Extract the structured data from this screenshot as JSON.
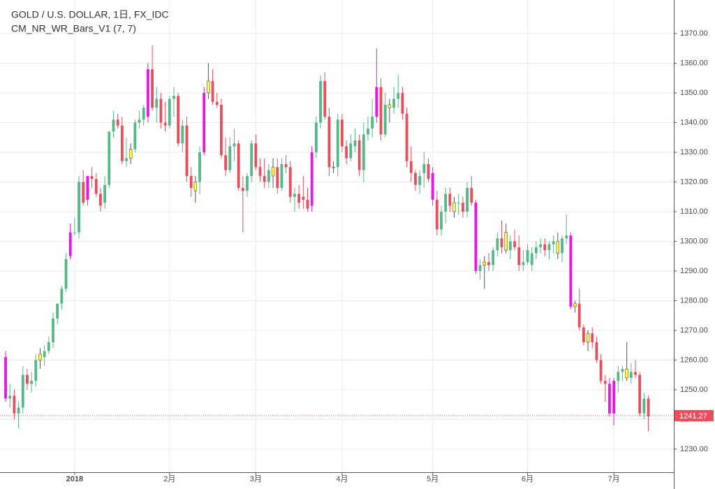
{
  "chart_data": {
    "type": "candlestick",
    "title": "GOLD / U.S. DOLLAR, 1日, FX_IDC",
    "indicator": "CM_NR_WR_Bars_V1 (7, 7)",
    "xlim": [
      -1.3,
      154.9
    ],
    "xticks": [
      {
        "value": 16,
        "label": "2018"
      },
      {
        "value": 38,
        "label": "2月"
      },
      {
        "value": 58,
        "label": "3月"
      },
      {
        "value": 78,
        "label": "4月"
      },
      {
        "value": 99,
        "label": "5月"
      },
      {
        "value": 121,
        "label": "6月"
      },
      {
        "value": 141,
        "label": "7月"
      }
    ],
    "ylim": [
      1222.2,
      1381.3
    ],
    "yticks": [
      {
        "value": 1230,
        "label": "1230.00"
      },
      {
        "value": 1240,
        "label": "1240.00"
      },
      {
        "value": 1250,
        "label": "1250.00"
      },
      {
        "value": 1260,
        "label": "1260.00"
      },
      {
        "value": 1270,
        "label": "1270.00"
      },
      {
        "value": 1280,
        "label": "1280.00"
      },
      {
        "value": 1290,
        "label": "1290.00"
      },
      {
        "value": 1300,
        "label": "1300.00"
      },
      {
        "value": 1310,
        "label": "1310.00"
      },
      {
        "value": 1320,
        "label": "1320.00"
      },
      {
        "value": 1330,
        "label": "1330.00"
      },
      {
        "value": 1340,
        "label": "1340.00"
      },
      {
        "value": 1350,
        "label": "1350.00"
      },
      {
        "value": 1360,
        "label": "1360.00"
      },
      {
        "value": 1370,
        "label": "1370.00"
      }
    ],
    "grid": true,
    "last_price": 1241.27,
    "last_price_color": "#eb4d5c",
    "up_color": "#53b987",
    "down_color": "#eb4d5c",
    "wide_color": "#e915e6",
    "narrow_color": "#ffff33",
    "wide_bars": [
      0,
      15,
      19,
      33,
      46,
      71,
      86,
      99,
      109,
      131,
      140,
      141
    ],
    "narrow_bars": [
      8,
      29,
      44,
      47,
      62,
      76,
      89,
      104,
      111,
      116,
      128,
      132,
      135,
      144
    ],
    "ohlc": [
      [
        1261,
        1263,
        1246,
        1247
      ],
      [
        1247,
        1252,
        1244,
        1248
      ],
      [
        1248,
        1250,
        1240,
        1242
      ],
      [
        1242,
        1246,
        1237,
        1244
      ],
      [
        1244,
        1258,
        1242,
        1255
      ],
      [
        1255,
        1257,
        1250,
        1252
      ],
      [
        1252,
        1256,
        1249,
        1253
      ],
      [
        1253,
        1262,
        1251,
        1260
      ],
      [
        1260,
        1264,
        1257,
        1262
      ],
      [
        1261,
        1265,
        1258,
        1263
      ],
      [
        1263,
        1268,
        1262,
        1266
      ],
      [
        1266,
        1276,
        1264,
        1274
      ],
      [
        1274,
        1279,
        1272,
        1279
      ],
      [
        1279,
        1285,
        1277,
        1284
      ],
      [
        1284,
        1296,
        1283,
        1294
      ],
      [
        1295,
        1306,
        1294,
        1303
      ],
      [
        1303,
        1308,
        1302,
        1303
      ],
      [
        1303,
        1322,
        1301,
        1320
      ],
      [
        1320,
        1324,
        1312,
        1313
      ],
      [
        1314,
        1322,
        1312,
        1322
      ],
      [
        1322,
        1325,
        1318,
        1321
      ],
      [
        1321,
        1323,
        1315,
        1316
      ],
      [
        1316,
        1318,
        1310,
        1312
      ],
      [
        1313,
        1322,
        1311,
        1319
      ],
      [
        1319,
        1337,
        1318,
        1337
      ],
      [
        1337,
        1344,
        1335,
        1341
      ],
      [
        1341,
        1343,
        1338,
        1339
      ],
      [
        1339,
        1342,
        1326,
        1327
      ],
      [
        1327,
        1335,
        1325,
        1328
      ],
      [
        1328,
        1333,
        1326,
        1331
      ],
      [
        1331,
        1341,
        1330,
        1340
      ],
      [
        1340,
        1344,
        1338,
        1341
      ],
      [
        1341,
        1346,
        1339,
        1345
      ],
      [
        1342,
        1360,
        1340,
        1358
      ],
      [
        1358,
        1366,
        1344,
        1345
      ],
      [
        1345,
        1352,
        1340,
        1348
      ],
      [
        1348,
        1350,
        1338,
        1340
      ],
      [
        1340,
        1347,
        1337,
        1339
      ],
      [
        1339,
        1349,
        1338,
        1348
      ],
      [
        1348,
        1352,
        1342,
        1349
      ],
      [
        1349,
        1350,
        1332,
        1333
      ],
      [
        1333,
        1341,
        1330,
        1339
      ],
      [
        1339,
        1342,
        1320,
        1322
      ],
      [
        1322,
        1325,
        1315,
        1318
      ],
      [
        1317,
        1322,
        1313,
        1320
      ],
      [
        1320,
        1332,
        1316,
        1330
      ],
      [
        1330,
        1352,
        1329,
        1350
      ],
      [
        1350,
        1360,
        1348,
        1354
      ],
      [
        1354,
        1358,
        1346,
        1347
      ],
      [
        1347,
        1350,
        1345,
        1346
      ],
      [
        1346,
        1348,
        1328,
        1329
      ],
      [
        1329,
        1335,
        1322,
        1324
      ],
      [
        1324,
        1335,
        1323,
        1332
      ],
      [
        1332,
        1338,
        1327,
        1333
      ],
      [
        1333,
        1334,
        1317,
        1318
      ],
      [
        1318,
        1322,
        1303,
        1317
      ],
      [
        1317,
        1323,
        1315,
        1322
      ],
      [
        1322,
        1334,
        1320,
        1333
      ],
      [
        1333,
        1336,
        1324,
        1325
      ],
      [
        1325,
        1328,
        1320,
        1322
      ],
      [
        1322,
        1328,
        1318,
        1320
      ],
      [
        1320,
        1326,
        1318,
        1324
      ],
      [
        1322,
        1328,
        1318,
        1325
      ],
      [
        1325,
        1328,
        1316,
        1318
      ],
      [
        1318,
        1328,
        1317,
        1326
      ],
      [
        1326,
        1329,
        1323,
        1325
      ],
      [
        1325,
        1327,
        1313,
        1315
      ],
      [
        1315,
        1318,
        1310,
        1316
      ],
      [
        1316,
        1319,
        1311,
        1313
      ],
      [
        1315,
        1322,
        1311,
        1314
      ],
      [
        1314,
        1318,
        1310,
        1311
      ],
      [
        1312,
        1332,
        1310,
        1330
      ],
      [
        1330,
        1342,
        1328,
        1340
      ],
      [
        1340,
        1356,
        1338,
        1354
      ],
      [
        1354,
        1357,
        1341,
        1342
      ],
      [
        1342,
        1345,
        1322,
        1325
      ],
      [
        1325,
        1327,
        1323,
        1325
      ],
      [
        1325,
        1343,
        1322,
        1341
      ],
      [
        1341,
        1343,
        1330,
        1332
      ],
      [
        1332,
        1334,
        1326,
        1328
      ],
      [
        1328,
        1336,
        1327,
        1333
      ],
      [
        1332,
        1338,
        1330,
        1334
      ],
      [
        1334,
        1336,
        1322,
        1324
      ],
      [
        1324,
        1340,
        1320,
        1336
      ],
      [
        1336,
        1342,
        1334,
        1338
      ],
      [
        1338,
        1348,
        1335,
        1342
      ],
      [
        1342,
        1365,
        1340,
        1352
      ],
      [
        1352,
        1355,
        1334,
        1336
      ],
      [
        1336,
        1350,
        1335,
        1346
      ],
      [
        1346,
        1348,
        1340,
        1345
      ],
      [
        1345,
        1352,
        1343,
        1348
      ],
      [
        1348,
        1356,
        1345,
        1350
      ],
      [
        1350,
        1352,
        1341,
        1343
      ],
      [
        1343,
        1345,
        1325,
        1327
      ],
      [
        1327,
        1332,
        1320,
        1323
      ],
      [
        1323,
        1324,
        1317,
        1319
      ],
      [
        1319,
        1324,
        1316,
        1322
      ],
      [
        1323,
        1330,
        1318,
        1326
      ],
      [
        1326,
        1328,
        1320,
        1321
      ],
      [
        1323,
        1325,
        1312,
        1314
      ],
      [
        1314,
        1317,
        1302,
        1304
      ],
      [
        1304,
        1312,
        1302,
        1310
      ],
      [
        1310,
        1318,
        1306,
        1316
      ],
      [
        1316,
        1318,
        1310,
        1312
      ],
      [
        1310,
        1315,
        1308,
        1313
      ],
      [
        1313,
        1316,
        1309,
        1313
      ],
      [
        1313,
        1315,
        1308,
        1310
      ],
      [
        1310,
        1320,
        1308,
        1318
      ],
      [
        1318,
        1322,
        1312,
        1313
      ],
      [
        1313,
        1314,
        1289,
        1290
      ],
      [
        1290,
        1294,
        1287,
        1292
      ],
      [
        1292,
        1295,
        1284,
        1293
      ],
      [
        1293,
        1296,
        1290,
        1292
      ],
      [
        1292,
        1298,
        1290,
        1297
      ],
      [
        1297,
        1303,
        1295,
        1301
      ],
      [
        1301,
        1307,
        1296,
        1298
      ],
      [
        1303,
        1306,
        1296,
        1297
      ],
      [
        1297,
        1302,
        1294,
        1300
      ],
      [
        1300,
        1304,
        1297,
        1298
      ],
      [
        1298,
        1302,
        1290,
        1292
      ],
      [
        1292,
        1297,
        1290,
        1293
      ],
      [
        1293,
        1299,
        1292,
        1297
      ],
      [
        1292,
        1298,
        1290,
        1296
      ],
      [
        1296,
        1300,
        1294,
        1298
      ],
      [
        1298,
        1301,
        1296,
        1299
      ],
      [
        1299,
        1301,
        1295,
        1297
      ],
      [
        1297,
        1300,
        1294,
        1299
      ],
      [
        1299,
        1302,
        1296,
        1300
      ],
      [
        1300,
        1303,
        1294,
        1296
      ],
      [
        1296,
        1302,
        1293,
        1301
      ],
      [
        1301,
        1309,
        1299,
        1302
      ],
      [
        1302,
        1303,
        1277,
        1278
      ],
      [
        1278,
        1280,
        1276,
        1279
      ],
      [
        1279,
        1284,
        1270,
        1271
      ],
      [
        1271,
        1272,
        1265,
        1266
      ],
      [
        1266,
        1270,
        1263,
        1269
      ],
      [
        1269,
        1271,
        1264,
        1266
      ],
      [
        1266,
        1268,
        1259,
        1260
      ],
      [
        1260,
        1262,
        1252,
        1253
      ],
      [
        1253,
        1255,
        1246,
        1252
      ],
      [
        1252,
        1254,
        1241,
        1242
      ],
      [
        1242,
        1254,
        1238,
        1253
      ],
      [
        1253,
        1258,
        1249,
        1256
      ],
      [
        1256,
        1258,
        1253,
        1257
      ],
      [
        1257,
        1266,
        1253,
        1254
      ],
      [
        1254,
        1259,
        1252,
        1256
      ],
      [
        1256,
        1260,
        1254,
        1255
      ],
      [
        1255,
        1256,
        1241,
        1242
      ],
      [
        1242,
        1249,
        1240,
        1247
      ],
      [
        1247,
        1248,
        1236,
        1241
      ]
    ]
  }
}
